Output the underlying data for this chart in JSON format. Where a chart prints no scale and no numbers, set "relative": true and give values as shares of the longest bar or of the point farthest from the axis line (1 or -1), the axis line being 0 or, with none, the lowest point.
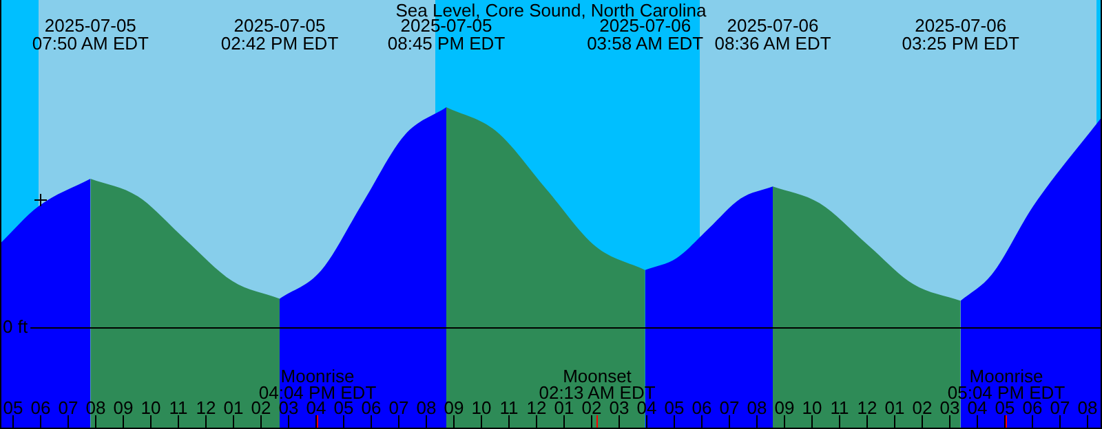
{
  "chart_data": {
    "type": "area",
    "title": "Sea Level, Core Sound, North Carolina",
    "relative": true,
    "x": [
      "2025-07-05T04:33",
      "2025-07-05T05:57",
      "2025-07-05T07:50",
      "2025-07-05T09:33",
      "2025-07-05T11:16",
      "2025-07-05T12:59",
      "2025-07-05T14:42",
      "2025-07-05T16:12",
      "2025-07-05T17:43",
      "2025-07-05T19:14",
      "2025-07-05T20:45",
      "2025-07-05T22:33",
      "2025-07-06T00:22",
      "2025-07-06T02:10",
      "2025-07-06T03:58",
      "2025-07-06T05:07",
      "2025-07-06T06:17",
      "2025-07-06T07:26",
      "2025-07-06T08:36",
      "2025-07-06T10:18",
      "2025-07-06T12:00",
      "2025-07-06T13:42",
      "2025-07-06T15:25",
      "2025-07-06T16:33",
      "2025-07-06T18:03",
      "2025-07-06T20:33"
    ],
    "series": [
      {
        "color": "#0000ff",
        "values": [
          0.38,
          0.55,
          0.675,
          null,
          null,
          null,
          0.13,
          0.257,
          0.566,
          0.873,
          1,
          null,
          null,
          null,
          0.26,
          0.315,
          0.45,
          0.585,
          0.64,
          null,
          null,
          null,
          0.12,
          0.24,
          0.55,
          0.956
        ]
      },
      {
        "color": "#2e8b57",
        "values": [
          null,
          null,
          0.675,
          0.595,
          0.4,
          0.21,
          0.13,
          null,
          null,
          null,
          1,
          0.892,
          0.63,
          0.368,
          0.26,
          null,
          null,
          null,
          0.64,
          0.564,
          0.38,
          0.196,
          0.12,
          null,
          null,
          null
        ]
      }
    ],
    "xticks": [
      {
        "value": "2025-07-05T05:00",
        "label": "05"
      },
      {
        "value": "2025-07-05T06:00",
        "label": "06"
      },
      {
        "value": "2025-07-05T07:00",
        "label": "07"
      },
      {
        "value": "2025-07-05T08:00",
        "label": "08"
      },
      {
        "value": "2025-07-05T09:00",
        "label": "09"
      },
      {
        "value": "2025-07-05T10:00",
        "label": "10"
      },
      {
        "value": "2025-07-05T11:00",
        "label": "11"
      },
      {
        "value": "2025-07-05T12:00",
        "label": "12"
      },
      {
        "value": "2025-07-05T13:00",
        "label": "01"
      },
      {
        "value": "2025-07-05T14:00",
        "label": "02"
      },
      {
        "value": "2025-07-05T15:00",
        "label": "03"
      },
      {
        "value": "2025-07-05T16:00",
        "label": "04"
      },
      {
        "value": "2025-07-05T17:00",
        "label": "05"
      },
      {
        "value": "2025-07-05T18:00",
        "label": "06"
      },
      {
        "value": "2025-07-05T19:00",
        "label": "07"
      },
      {
        "value": "2025-07-05T20:00",
        "label": "08"
      },
      {
        "value": "2025-07-05T21:00",
        "label": "09"
      },
      {
        "value": "2025-07-05T22:00",
        "label": "10"
      },
      {
        "value": "2025-07-05T23:00",
        "label": "11"
      },
      {
        "value": "2025-07-06T00:00",
        "label": "12"
      },
      {
        "value": "2025-07-06T01:00",
        "label": "01"
      },
      {
        "value": "2025-07-06T02:00",
        "label": "02"
      },
      {
        "value": "2025-07-06T03:00",
        "label": "03"
      },
      {
        "value": "2025-07-06T04:00",
        "label": "04"
      },
      {
        "value": "2025-07-06T05:00",
        "label": "05"
      },
      {
        "value": "2025-07-06T06:00",
        "label": "06"
      },
      {
        "value": "2025-07-06T07:00",
        "label": "07"
      },
      {
        "value": "2025-07-06T08:00",
        "label": "08"
      },
      {
        "value": "2025-07-06T09:00",
        "label": "09"
      },
      {
        "value": "2025-07-06T10:00",
        "label": "10"
      },
      {
        "value": "2025-07-06T11:00",
        "label": "11"
      },
      {
        "value": "2025-07-06T12:00",
        "label": "12"
      },
      {
        "value": "2025-07-06T13:00",
        "label": "01"
      },
      {
        "value": "2025-07-06T14:00",
        "label": "02"
      },
      {
        "value": "2025-07-06T15:00",
        "label": "03"
      },
      {
        "value": "2025-07-06T16:00",
        "label": "04"
      },
      {
        "value": "2025-07-06T17:00",
        "label": "05"
      },
      {
        "value": "2025-07-06T18:00",
        "label": "06"
      },
      {
        "value": "2025-07-06T19:00",
        "label": "07"
      },
      {
        "value": "2025-07-06T20:00",
        "label": "08"
      }
    ],
    "xlim": [
      "2025-07-05T04:33",
      "2025-07-06T20:33"
    ],
    "tick_labels": "x",
    "bands": [
      {
        "axis": "x",
        "from": "2025-07-05T04:33",
        "to": "2025-07-05T05:57",
        "color": "#00bfff"
      },
      {
        "axis": "x",
        "from": "2025-07-05T05:57",
        "to": "2025-07-05T20:21",
        "color": "#87ceeb"
      },
      {
        "axis": "x",
        "from": "2025-07-05T20:21",
        "to": "2025-07-06T05:57",
        "color": "#00bfff"
      },
      {
        "axis": "x",
        "from": "2025-07-06T05:57",
        "to": "2025-07-06T20:21",
        "color": "#87ceeb"
      },
      {
        "axis": "x",
        "from": "2025-07-06T20:21",
        "to": "2025-07-06T20:33",
        "color": "#00bfff"
      }
    ],
    "ref_lines": [
      {
        "axis": "y",
        "value": 0,
        "label": "0 ft",
        "color": "#000000"
      },
      {
        "axis": "x",
        "value": "2025-07-05T16:04",
        "label": "Moonrise\n04:04 PM EDT",
        "color": "#ff0000"
      },
      {
        "axis": "x",
        "value": "2025-07-06T02:13",
        "label": "Moonset\n02:13 AM EDT",
        "color": "#ff0000"
      },
      {
        "axis": "x",
        "value": "2025-07-06T17:04",
        "label": "Moonrise\n05:04 PM EDT",
        "color": "#ff0000"
      }
    ],
    "annotations": [
      "2025-07-05\n07:50 AM EDT",
      "2025-07-05\n02:42 PM EDT",
      "2025-07-05\n08:45 PM EDT",
      "2025-07-06\n03:58 AM EDT",
      "2025-07-06\n08:36 AM EDT",
      "2025-07-06\n03:25 PM EDT"
    ]
  }
}
